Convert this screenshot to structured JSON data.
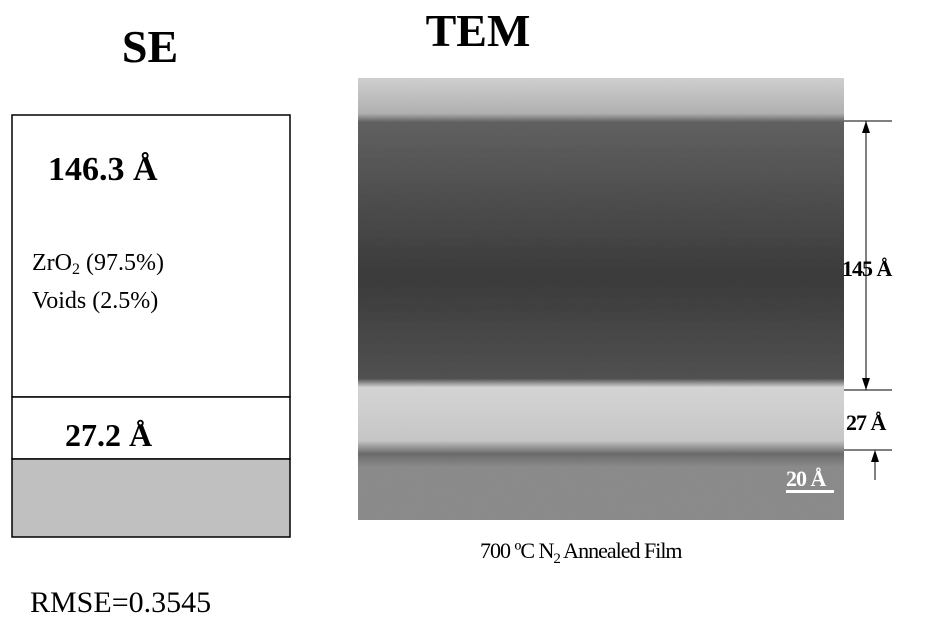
{
  "se": {
    "title": "SE",
    "top_layer": {
      "thickness": "146.3 Å",
      "composition": [
        [
          "ZrO",
          "2",
          " (97.5%)"
        ],
        [
          "Voids (2.5%)"
        ]
      ]
    },
    "interface_layer": {
      "thickness": "27.2 Å"
    },
    "rmse": "RMSE=0.3545"
  },
  "tem": {
    "title": "TEM",
    "film_thickness": "145 Å",
    "interface_thickness": "27 Å",
    "scale_bar": "20 Å",
    "caption": [
      "700 ºC N",
      "2",
      " Annealed Film"
    ]
  }
}
